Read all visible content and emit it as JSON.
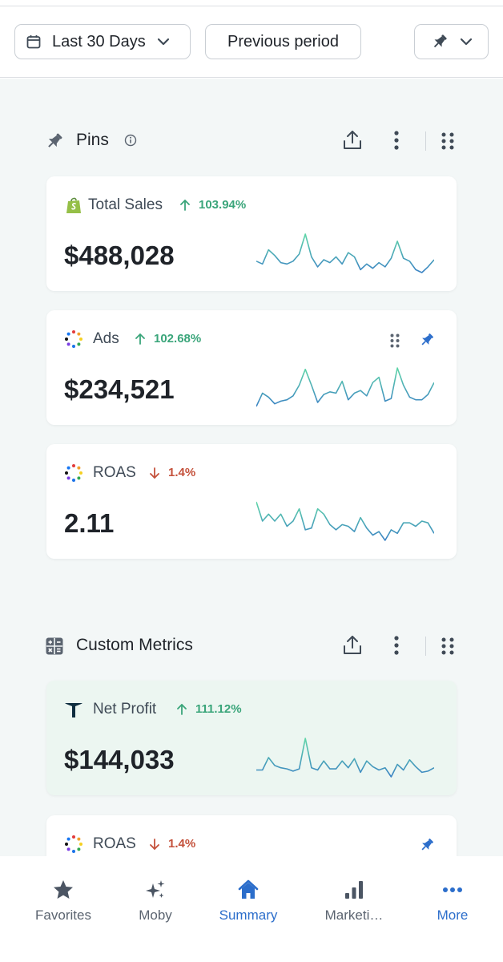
{
  "filters": {
    "date_range": "Last 30 Days",
    "compare": "Previous period"
  },
  "sections": {
    "pins": {
      "title": "Pins"
    },
    "custom_metrics": {
      "title": "Custom Metrics"
    }
  },
  "cards": [
    {
      "title": "Total Sales",
      "change": "103.94%",
      "direction": "up",
      "value": "$488,028",
      "icon": "shopify-icon",
      "spark": [
        20,
        22,
        12,
        16,
        21,
        22,
        20,
        15,
        1,
        17,
        24,
        19,
        21,
        17,
        22,
        14,
        17,
        26,
        22,
        25,
        21,
        24,
        18,
        6,
        18,
        20,
        26,
        28,
        24,
        19
      ]
    },
    {
      "title": "Ads",
      "change": "102.68%",
      "direction": "up",
      "value": "$234,521",
      "icon": "ads-dots-icon",
      "spark": [
        30,
        20,
        23,
        28,
        26,
        25,
        22,
        14,
        2,
        14,
        27,
        21,
        19,
        20,
        11,
        25,
        20,
        18,
        22,
        12,
        8,
        26,
        24,
        1,
        14,
        23,
        25,
        25,
        21,
        12
      ]
    },
    {
      "title": "ROAS",
      "change": "1.4%",
      "direction": "down",
      "value": "2.11",
      "icon": "roas-dots-icon",
      "spark": [
        2,
        13,
        9,
        13,
        9,
        16,
        13,
        6,
        18,
        17,
        6,
        9,
        15,
        18,
        15,
        16,
        19,
        11,
        17,
        21,
        19,
        24,
        18,
        20,
        14,
        14,
        16,
        13,
        14,
        20
      ]
    },
    {
      "title": "Net Profit",
      "change": "111.12%",
      "direction": "up",
      "value": "$144,033",
      "icon": "net-profit-logo-icon",
      "spark": [
        30,
        30,
        19,
        26,
        28,
        29,
        31,
        29,
        2,
        28,
        30,
        22,
        29,
        29,
        22,
        28,
        20,
        32,
        22,
        27,
        30,
        28,
        36,
        25,
        30,
        21,
        27,
        32,
        31,
        28
      ]
    },
    {
      "title": "ROAS",
      "change": "1.4%",
      "direction": "down",
      "value": "",
      "icon": "roas-dots-icon",
      "spark": []
    }
  ],
  "nav": [
    {
      "label": "Favorites",
      "icon": "star-icon"
    },
    {
      "label": "Moby",
      "icon": "sparkles-icon"
    },
    {
      "label": "Summary",
      "icon": "home-icon",
      "active": true
    },
    {
      "label": "Marketi…",
      "icon": "bar-chart-icon"
    },
    {
      "label": "More",
      "icon": "dots-horizontal-icon",
      "active": true
    }
  ],
  "colors": {
    "accent": "#2c6ecb",
    "positive": "#3aa57a",
    "negative": "#c4513b",
    "spark_start": "#3b82c4",
    "spark_end": "#5fd6a8"
  }
}
